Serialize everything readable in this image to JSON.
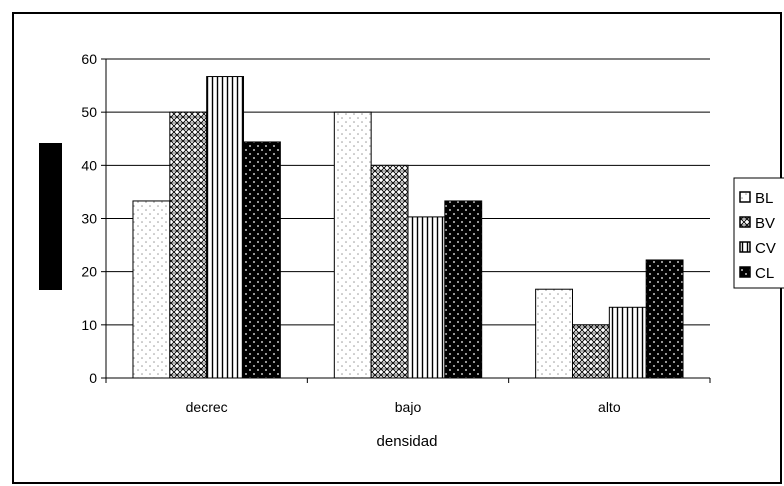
{
  "chart_data": {
    "type": "bar",
    "title": "",
    "xlabel": "densidad",
    "ylabel": "",
    "categories": [
      "decrec",
      "bajo",
      "alto"
    ],
    "ylim": [
      0,
      60
    ],
    "yticks": [
      0,
      10,
      20,
      30,
      40,
      50,
      60
    ],
    "grid": true,
    "legend_position": "right",
    "series": [
      {
        "name": "BL",
        "values": [
          33.3,
          50,
          16.7
        ],
        "pattern": "dots-light"
      },
      {
        "name": "BV",
        "values": [
          50,
          40,
          10
        ],
        "pattern": "crosshatch"
      },
      {
        "name": "CV",
        "values": [
          56.7,
          30.3,
          13.3
        ],
        "pattern": "vertical-lines"
      },
      {
        "name": "CL",
        "values": [
          44.4,
          33.3,
          22.2
        ],
        "pattern": "dark-dots"
      }
    ]
  }
}
